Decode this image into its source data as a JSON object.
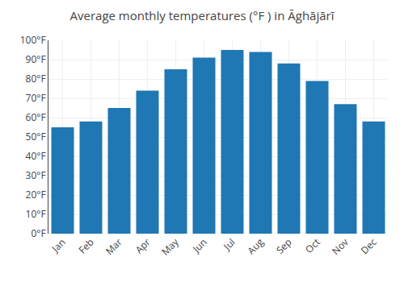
{
  "chart_data": {
    "type": "bar",
    "title": "Average monthly temperatures (°F ) in Āghājārī",
    "categories": [
      "Jan",
      "Feb",
      "Mar",
      "Apr",
      "May",
      "Jun",
      "Jul",
      "Aug",
      "Sep",
      "Oct",
      "Nov",
      "Dec"
    ],
    "values": [
      55,
      58,
      65,
      74,
      85,
      91,
      95,
      94,
      88,
      79,
      67,
      58
    ],
    "ylim": [
      0,
      100
    ],
    "yticks": [
      {
        "value": 0,
        "label": "0°F"
      },
      {
        "value": 10,
        "label": "10°F"
      },
      {
        "value": 20,
        "label": "20°F"
      },
      {
        "value": 30,
        "label": "30°F"
      },
      {
        "value": 40,
        "label": "40°F"
      },
      {
        "value": 50,
        "label": "50°F"
      },
      {
        "value": 60,
        "label": "60°F"
      },
      {
        "value": 70,
        "label": "70°F"
      },
      {
        "value": 80,
        "label": "80°F"
      },
      {
        "value": 90,
        "label": "90°F"
      },
      {
        "value": 100,
        "label": "100°F"
      }
    ],
    "grid": true
  }
}
